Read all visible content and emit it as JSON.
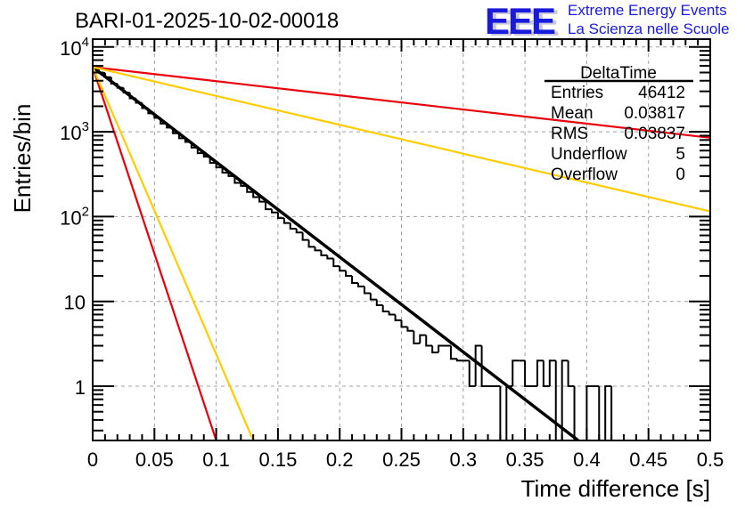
{
  "chart_data": {
    "type": "bar",
    "subtype": "histogram-step",
    "title": "BARI-01-2025-10-02-00018",
    "xlabel": "Time difference [s]",
    "ylabel": "Entries/bin",
    "xlim": [
      0,
      0.5
    ],
    "ylim": [
      0.23,
      10000
    ],
    "yscale": "log",
    "grid": true,
    "x_ticks": [
      "0",
      "0.05",
      "0.1",
      "0.15",
      "0.2",
      "0.25",
      "0.3",
      "0.35",
      "0.4",
      "0.45",
      "0.5"
    ],
    "x_tick_values": [
      0,
      0.05,
      0.1,
      0.15,
      0.2,
      0.25,
      0.3,
      0.35,
      0.4,
      0.45,
      0.5
    ],
    "y_ticks": [
      {
        "value": 10000,
        "base": "10",
        "exp": "4"
      },
      {
        "value": 1000,
        "base": "10",
        "exp": "3"
      },
      {
        "value": 100,
        "base": "10",
        "exp": "2"
      },
      {
        "value": 10,
        "base": "10",
        "exp": ""
      },
      {
        "value": 1,
        "base": "1",
        "exp": ""
      }
    ],
    "bin_width": 0.005,
    "histogram": {
      "name": "DeltaTime",
      "color": "#000000",
      "values": [
        5600,
        4950,
        4400,
        3700,
        3300,
        2900,
        2480,
        2200,
        1900,
        1650,
        1460,
        1250,
        1120,
        960,
        840,
        760,
        650,
        560,
        510,
        430,
        380,
        330,
        300,
        250,
        230,
        195,
        170,
        150,
        122,
        112,
        96,
        84,
        72,
        65,
        53,
        44,
        40,
        35,
        32,
        26,
        23,
        20,
        16.5,
        15,
        12.5,
        10.5,
        9,
        7.6,
        7,
        6,
        5,
        4.5,
        3.2,
        4,
        3,
        2.5,
        3,
        3,
        2.1,
        2,
        2,
        1,
        3,
        1,
        1,
        1,
        0,
        1,
        2,
        2,
        1,
        1,
        2,
        1,
        2,
        0,
        2,
        1,
        0,
        0,
        1,
        1,
        0,
        1,
        0,
        0,
        0,
        0,
        0,
        0,
        0,
        0,
        0,
        0,
        0,
        0,
        0,
        0,
        0,
        0
      ]
    },
    "series": [
      {
        "name": "fit",
        "color": "#000000",
        "type": "line",
        "x": [
          0,
          0.393
        ],
        "y": [
          5800,
          0.23
        ]
      },
      {
        "name": "red-steep",
        "color": "#e8000b",
        "type": "line",
        "x": [
          0,
          0.1
        ],
        "y": [
          5800,
          0.23
        ]
      },
      {
        "name": "yellow-steep",
        "color": "#ffcc00",
        "type": "line",
        "x": [
          0,
          0.13
        ],
        "y": [
          5800,
          0.23
        ]
      },
      {
        "name": "red-shallow",
        "color": "#e8000b",
        "type": "line",
        "x": [
          0,
          0.5
        ],
        "y": [
          5800,
          850
        ]
      },
      {
        "name": "yellow-shallow",
        "color": "#ffcc00",
        "type": "line",
        "x": [
          0,
          0.5
        ],
        "y": [
          5800,
          115
        ]
      }
    ],
    "stats_box": {
      "title": "DeltaTime",
      "rows": [
        {
          "label": "Entries",
          "value": "46412"
        },
        {
          "label": "Mean",
          "value": "0.03817"
        },
        {
          "label": "RMS",
          "value": "0.03837"
        },
        {
          "label": "Underflow",
          "value": "5"
        },
        {
          "label": "Overflow",
          "value": "0"
        }
      ]
    }
  },
  "logo": {
    "mark": "EEE",
    "line1": "Extreme Energy Events",
    "line2": "La Scienza nelle Scuole",
    "color": "#1a1adc"
  }
}
